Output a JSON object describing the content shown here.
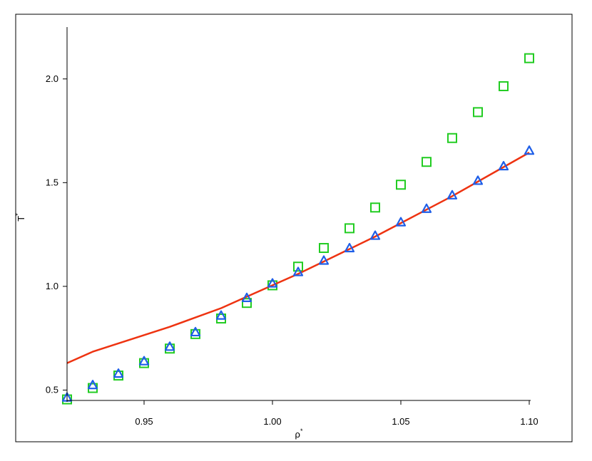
{
  "chart_data": {
    "type": "scatter",
    "title": "",
    "xlabel": "ρ",
    "xlabel_sup": "*",
    "ylabel": "T",
    "ylabel_sup": "*",
    "xlim": [
      0.92,
      1.1
    ],
    "ylim": [
      0.45,
      2.25
    ],
    "xticks": [
      0.95,
      1.0,
      1.05,
      1.1
    ],
    "xtick_labels": [
      "0.95",
      "1.00",
      "1.05",
      "1.10"
    ],
    "yticks": [
      0.5,
      1.0,
      1.5,
      2.0
    ],
    "ytick_labels": [
      "0.5",
      "1.0",
      "1.5",
      "2.0"
    ],
    "grid": false,
    "legend": "none",
    "series": [
      {
        "marker": "square",
        "color": "#22cc22",
        "x": [
          0.92,
          0.93,
          0.94,
          0.95,
          0.96,
          0.97,
          0.98,
          0.99,
          1.0,
          1.01,
          1.02,
          1.03,
          1.04,
          1.05,
          1.06,
          1.07,
          1.08,
          1.09,
          1.1
        ],
        "y": [
          0.455,
          0.51,
          0.57,
          0.63,
          0.7,
          0.77,
          0.845,
          0.92,
          1.005,
          1.095,
          1.185,
          1.28,
          1.38,
          1.49,
          1.6,
          1.715,
          1.84,
          1.965,
          2.1
        ]
      },
      {
        "marker": "triangle",
        "color": "#1f5fe8",
        "x": [
          0.92,
          0.93,
          0.94,
          0.95,
          0.96,
          0.97,
          0.98,
          0.99,
          1.0,
          1.01,
          1.02,
          1.03,
          1.04,
          1.05,
          1.06,
          1.07,
          1.08,
          1.09,
          1.1
        ],
        "y": [
          0.465,
          0.525,
          0.58,
          0.64,
          0.71,
          0.78,
          0.86,
          0.945,
          1.015,
          1.07,
          1.125,
          1.185,
          1.245,
          1.31,
          1.375,
          1.44,
          1.51,
          1.58,
          1.655
        ]
      },
      {
        "marker": "line",
        "color": "#ee3311",
        "x": [
          0.92,
          0.93,
          0.94,
          0.95,
          0.96,
          0.97,
          0.98,
          0.99,
          1.0,
          1.01,
          1.02,
          1.03,
          1.04,
          1.05,
          1.06,
          1.07,
          1.08,
          1.09,
          1.1
        ],
        "y": [
          0.63,
          0.685,
          0.725,
          0.765,
          0.805,
          0.85,
          0.895,
          0.95,
          1.005,
          1.06,
          1.12,
          1.18,
          1.24,
          1.305,
          1.37,
          1.435,
          1.505,
          1.575,
          1.645
        ]
      }
    ]
  }
}
